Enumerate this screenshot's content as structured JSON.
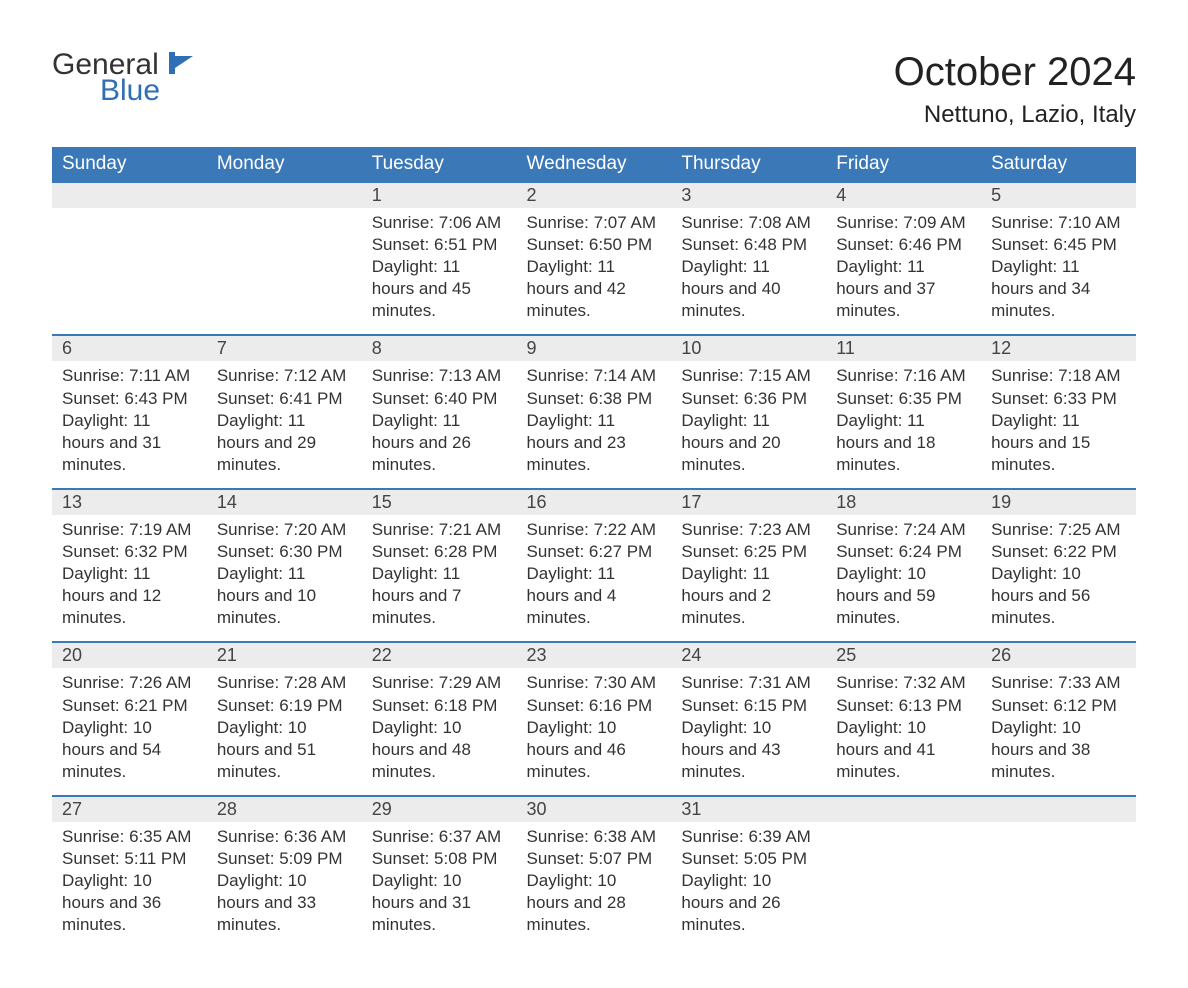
{
  "logo": {
    "general": "General",
    "blue": "Blue"
  },
  "title": "October 2024",
  "location": "Nettuno, Lazio, Italy",
  "headers": [
    "Sunday",
    "Monday",
    "Tuesday",
    "Wednesday",
    "Thursday",
    "Friday",
    "Saturday"
  ],
  "accent_color": "#3b78b8",
  "header_bg": "#3b78b8",
  "daynum_bg": "#ececec",
  "weeks": [
    [
      null,
      null,
      {
        "n": "1",
        "sunrise": "7:06 AM",
        "sunset": "6:51 PM",
        "daylight": "11 hours and 45 minutes."
      },
      {
        "n": "2",
        "sunrise": "7:07 AM",
        "sunset": "6:50 PM",
        "daylight": "11 hours and 42 minutes."
      },
      {
        "n": "3",
        "sunrise": "7:08 AM",
        "sunset": "6:48 PM",
        "daylight": "11 hours and 40 minutes."
      },
      {
        "n": "4",
        "sunrise": "7:09 AM",
        "sunset": "6:46 PM",
        "daylight": "11 hours and 37 minutes."
      },
      {
        "n": "5",
        "sunrise": "7:10 AM",
        "sunset": "6:45 PM",
        "daylight": "11 hours and 34 minutes."
      }
    ],
    [
      {
        "n": "6",
        "sunrise": "7:11 AM",
        "sunset": "6:43 PM",
        "daylight": "11 hours and 31 minutes."
      },
      {
        "n": "7",
        "sunrise": "7:12 AM",
        "sunset": "6:41 PM",
        "daylight": "11 hours and 29 minutes."
      },
      {
        "n": "8",
        "sunrise": "7:13 AM",
        "sunset": "6:40 PM",
        "daylight": "11 hours and 26 minutes."
      },
      {
        "n": "9",
        "sunrise": "7:14 AM",
        "sunset": "6:38 PM",
        "daylight": "11 hours and 23 minutes."
      },
      {
        "n": "10",
        "sunrise": "7:15 AM",
        "sunset": "6:36 PM",
        "daylight": "11 hours and 20 minutes."
      },
      {
        "n": "11",
        "sunrise": "7:16 AM",
        "sunset": "6:35 PM",
        "daylight": "11 hours and 18 minutes."
      },
      {
        "n": "12",
        "sunrise": "7:18 AM",
        "sunset": "6:33 PM",
        "daylight": "11 hours and 15 minutes."
      }
    ],
    [
      {
        "n": "13",
        "sunrise": "7:19 AM",
        "sunset": "6:32 PM",
        "daylight": "11 hours and 12 minutes."
      },
      {
        "n": "14",
        "sunrise": "7:20 AM",
        "sunset": "6:30 PM",
        "daylight": "11 hours and 10 minutes."
      },
      {
        "n": "15",
        "sunrise": "7:21 AM",
        "sunset": "6:28 PM",
        "daylight": "11 hours and 7 minutes."
      },
      {
        "n": "16",
        "sunrise": "7:22 AM",
        "sunset": "6:27 PM",
        "daylight": "11 hours and 4 minutes."
      },
      {
        "n": "17",
        "sunrise": "7:23 AM",
        "sunset": "6:25 PM",
        "daylight": "11 hours and 2 minutes."
      },
      {
        "n": "18",
        "sunrise": "7:24 AM",
        "sunset": "6:24 PM",
        "daylight": "10 hours and 59 minutes."
      },
      {
        "n": "19",
        "sunrise": "7:25 AM",
        "sunset": "6:22 PM",
        "daylight": "10 hours and 56 minutes."
      }
    ],
    [
      {
        "n": "20",
        "sunrise": "7:26 AM",
        "sunset": "6:21 PM",
        "daylight": "10 hours and 54 minutes."
      },
      {
        "n": "21",
        "sunrise": "7:28 AM",
        "sunset": "6:19 PM",
        "daylight": "10 hours and 51 minutes."
      },
      {
        "n": "22",
        "sunrise": "7:29 AM",
        "sunset": "6:18 PM",
        "daylight": "10 hours and 48 minutes."
      },
      {
        "n": "23",
        "sunrise": "7:30 AM",
        "sunset": "6:16 PM",
        "daylight": "10 hours and 46 minutes."
      },
      {
        "n": "24",
        "sunrise": "7:31 AM",
        "sunset": "6:15 PM",
        "daylight": "10 hours and 43 minutes."
      },
      {
        "n": "25",
        "sunrise": "7:32 AM",
        "sunset": "6:13 PM",
        "daylight": "10 hours and 41 minutes."
      },
      {
        "n": "26",
        "sunrise": "7:33 AM",
        "sunset": "6:12 PM",
        "daylight": "10 hours and 38 minutes."
      }
    ],
    [
      {
        "n": "27",
        "sunrise": "6:35 AM",
        "sunset": "5:11 PM",
        "daylight": "10 hours and 36 minutes."
      },
      {
        "n": "28",
        "sunrise": "6:36 AM",
        "sunset": "5:09 PM",
        "daylight": "10 hours and 33 minutes."
      },
      {
        "n": "29",
        "sunrise": "6:37 AM",
        "sunset": "5:08 PM",
        "daylight": "10 hours and 31 minutes."
      },
      {
        "n": "30",
        "sunrise": "6:38 AM",
        "sunset": "5:07 PM",
        "daylight": "10 hours and 28 minutes."
      },
      {
        "n": "31",
        "sunrise": "6:39 AM",
        "sunset": "5:05 PM",
        "daylight": "10 hours and 26 minutes."
      },
      null,
      null
    ]
  ]
}
